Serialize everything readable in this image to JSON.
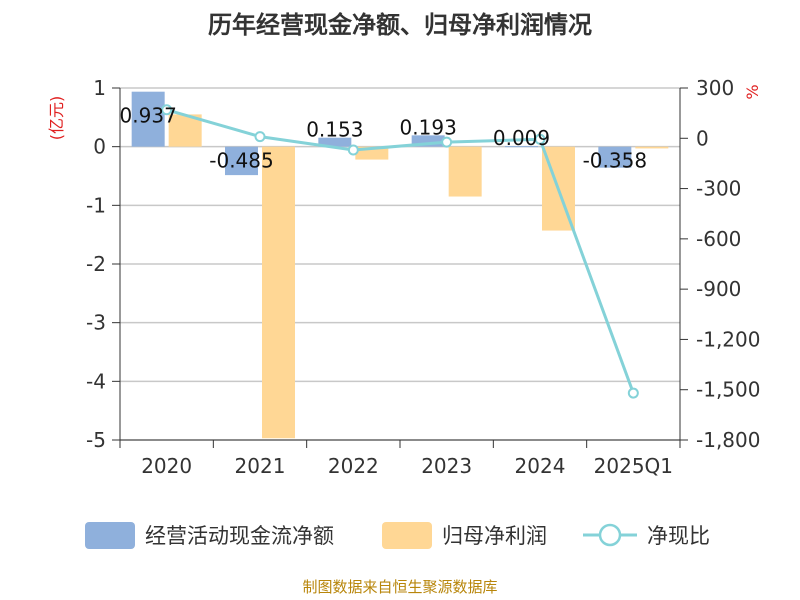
{
  "chart_data": {
    "type": "bar",
    "title": "历年经营现金净额、归母净利润情况",
    "categories": [
      "2020",
      "2021",
      "2022",
      "2023",
      "2024",
      "2025Q1"
    ],
    "left_axis": {
      "unit": "(亿元)",
      "ylim": [
        -5,
        1
      ],
      "ticks": [
        1,
        0,
        -1,
        -2,
        -3,
        -4,
        -5
      ],
      "tick_labels": [
        "1",
        "0",
        "-1",
        "-2",
        "-3",
        "-4",
        "-5"
      ]
    },
    "right_axis": {
      "unit": "%",
      "ylim": [
        -1800,
        300
      ],
      "ticks": [
        300,
        0,
        -300,
        -600,
        -900,
        -1200,
        -1500,
        -1800
      ],
      "tick_labels": [
        "300",
        "0",
        "-300",
        "-600",
        "-900",
        "-1,200",
        "-1,500",
        "-1,800"
      ]
    },
    "series": [
      {
        "name": "经营活动现金流净额",
        "type": "bar",
        "axis": "left",
        "color": "#8fb0dc",
        "values": [
          0.937,
          -0.485,
          0.153,
          0.193,
          0.009,
          -0.358
        ],
        "labels": [
          "0.937",
          "-0.485",
          "0.153",
          "0.193",
          "0.009",
          "-0.358"
        ]
      },
      {
        "name": "归母净利润",
        "type": "bar",
        "axis": "left",
        "color": "#ffd795",
        "values": [
          0.55,
          -4.97,
          -0.22,
          -0.85,
          -1.43,
          -0.03
        ]
      },
      {
        "name": "净现比",
        "type": "line",
        "axis": "right",
        "color": "#84d2d8",
        "values": [
          170,
          10,
          -70,
          -23,
          -6,
          -1520
        ]
      }
    ],
    "grid": true,
    "legend_position": "bottom"
  },
  "source_note": "制图数据来自恒生聚源数据库"
}
